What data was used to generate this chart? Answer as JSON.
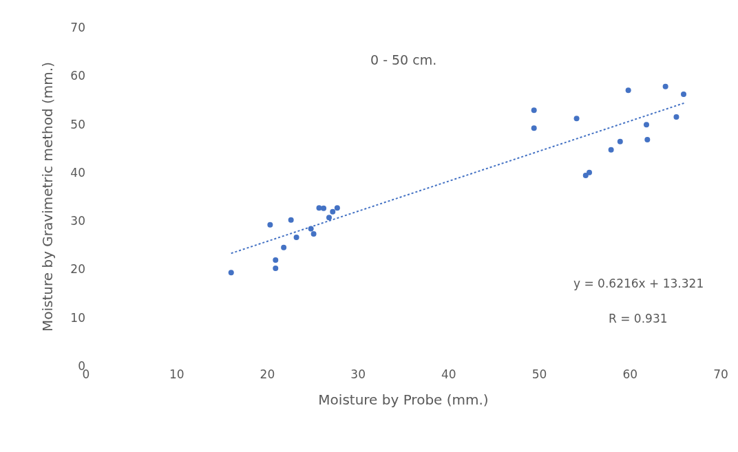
{
  "chart_data": {
    "type": "scatter",
    "title": "0 - 50 cm.",
    "xlabel": "Moisture by Probe (mm.)",
    "ylabel": "Moisture by Gravimetric method (mm.)",
    "xlim": [
      0,
      70
    ],
    "xticks": [
      0,
      10,
      20,
      30,
      40,
      50,
      60,
      70
    ],
    "ylim": [
      0,
      70
    ],
    "yticks": [
      0,
      10,
      20,
      30,
      40,
      50,
      60,
      70
    ],
    "grid": false,
    "marker": "circle",
    "annotations": [
      "y = 0.6216x + 13.321",
      "R = 0.931"
    ],
    "series": [
      {
        "color": "#4472c4",
        "x": [
          16.0,
          20.3,
          20.9,
          20.9,
          21.8,
          22.6,
          23.2,
          24.8,
          25.1,
          25.7,
          26.2,
          26.8,
          27.2,
          27.7,
          49.4,
          49.4,
          54.1,
          55.1,
          55.5,
          57.9,
          58.9,
          59.8,
          61.8,
          61.9,
          63.9,
          65.1,
          65.9
        ],
        "values": [
          19.3,
          29.2,
          21.9,
          20.2,
          24.5,
          30.2,
          26.6,
          28.4,
          27.3,
          32.7,
          32.6,
          30.7,
          31.9,
          32.7,
          52.9,
          49.2,
          51.2,
          39.4,
          40.0,
          44.7,
          46.4,
          57.0,
          49.9,
          46.8,
          57.8,
          51.5,
          56.2
        ]
      },
      {
        "type": "line",
        "color": "#4472c4",
        "line_style": "dotted",
        "marker": "none",
        "x": [
          16,
          66
        ],
        "values": [
          23.3,
          54.4
        ]
      }
    ]
  }
}
